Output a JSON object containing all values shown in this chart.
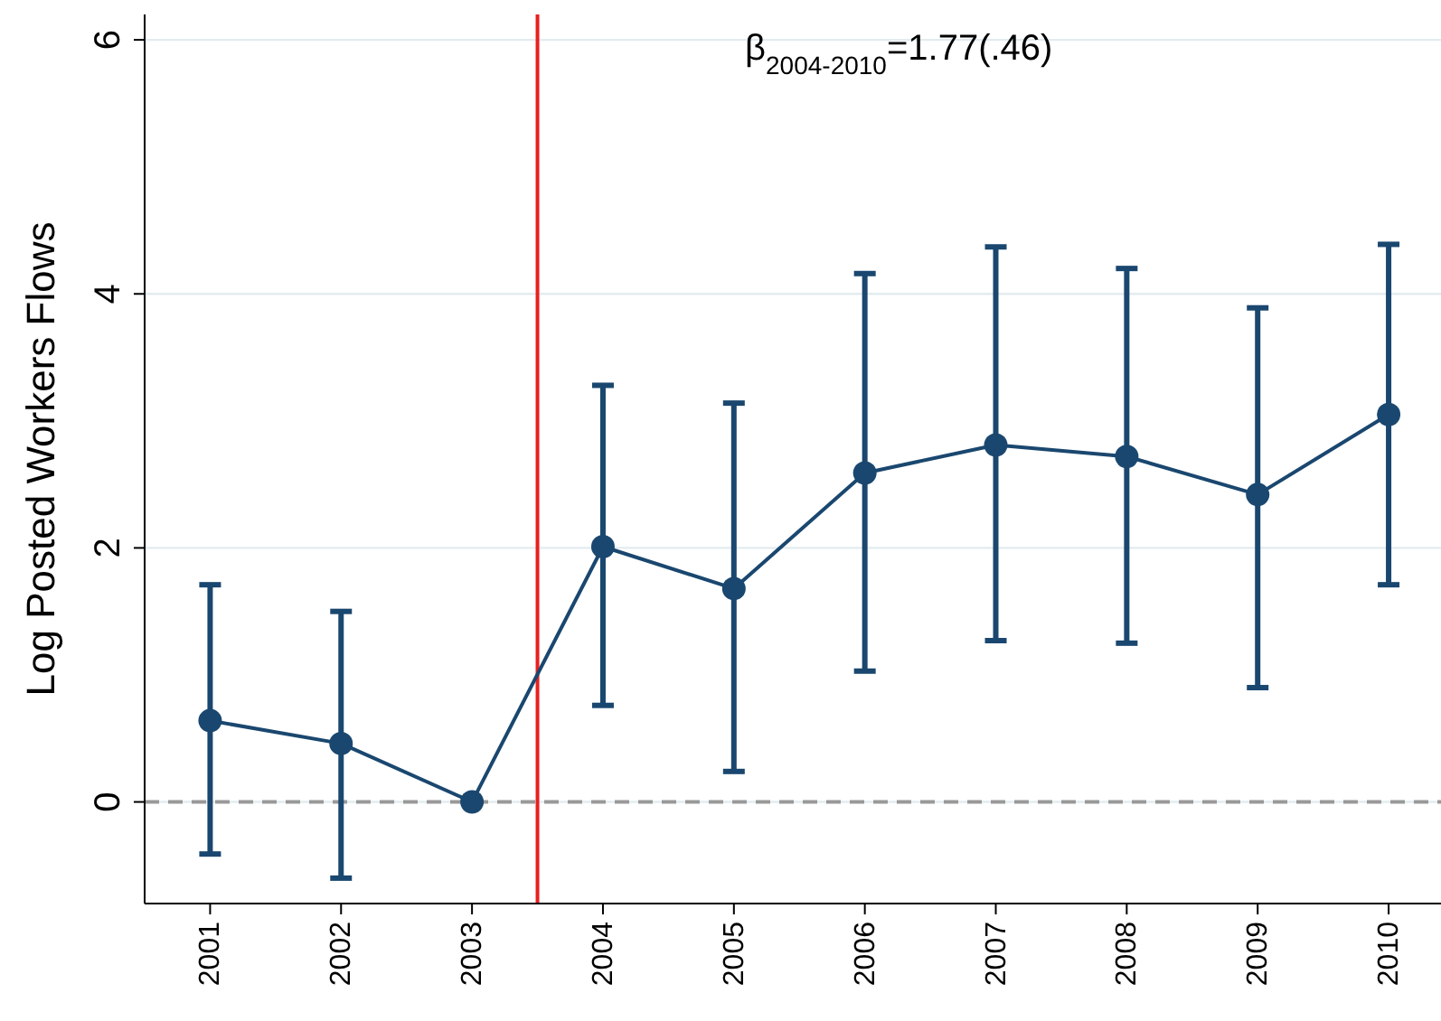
{
  "chart_data": {
    "type": "line",
    "ylabel": "Log Posted Workers Flows",
    "x": [
      2001,
      2002,
      2003,
      2004,
      2005,
      2006,
      2007,
      2008,
      2009,
      2010
    ],
    "series": [
      {
        "color": "#1a476f",
        "values": [
          0.64,
          0.46,
          0,
          2.01,
          1.68,
          2.59,
          2.81,
          2.72,
          2.42,
          3.05
        ],
        "errors": [
          [
            -0.41,
            1.71
          ],
          [
            -0.6,
            1.5
          ],
          null,
          [
            0.76,
            3.28
          ],
          [
            0.24,
            3.14
          ],
          [
            1.03,
            4.16
          ],
          [
            1.27,
            4.37
          ],
          [
            1.25,
            4.2
          ],
          [
            0.9,
            3.89
          ],
          [
            1.71,
            4.39
          ]
        ]
      }
    ],
    "xlim": [
      2000.5,
      2010.4
    ],
    "xticks": [
      2001,
      2002,
      2003,
      2004,
      2005,
      2006,
      2007,
      2008,
      2009,
      2010
    ],
    "ylim": [
      -0.8,
      6.2
    ],
    "yticks": [
      0,
      2,
      4,
      6
    ],
    "grid": "y",
    "marker": "circle",
    "line_style": "solid",
    "ref_lines": [
      {
        "axis": "x",
        "value": 2003.5,
        "color": "#e8201f",
        "line_style": "solid"
      },
      {
        "axis": "y",
        "value": 0,
        "color": "#999999",
        "line_style": "dashed"
      }
    ],
    "annotations": [
      "β$_{2004-2010}$=1.77(.46)"
    ]
  }
}
